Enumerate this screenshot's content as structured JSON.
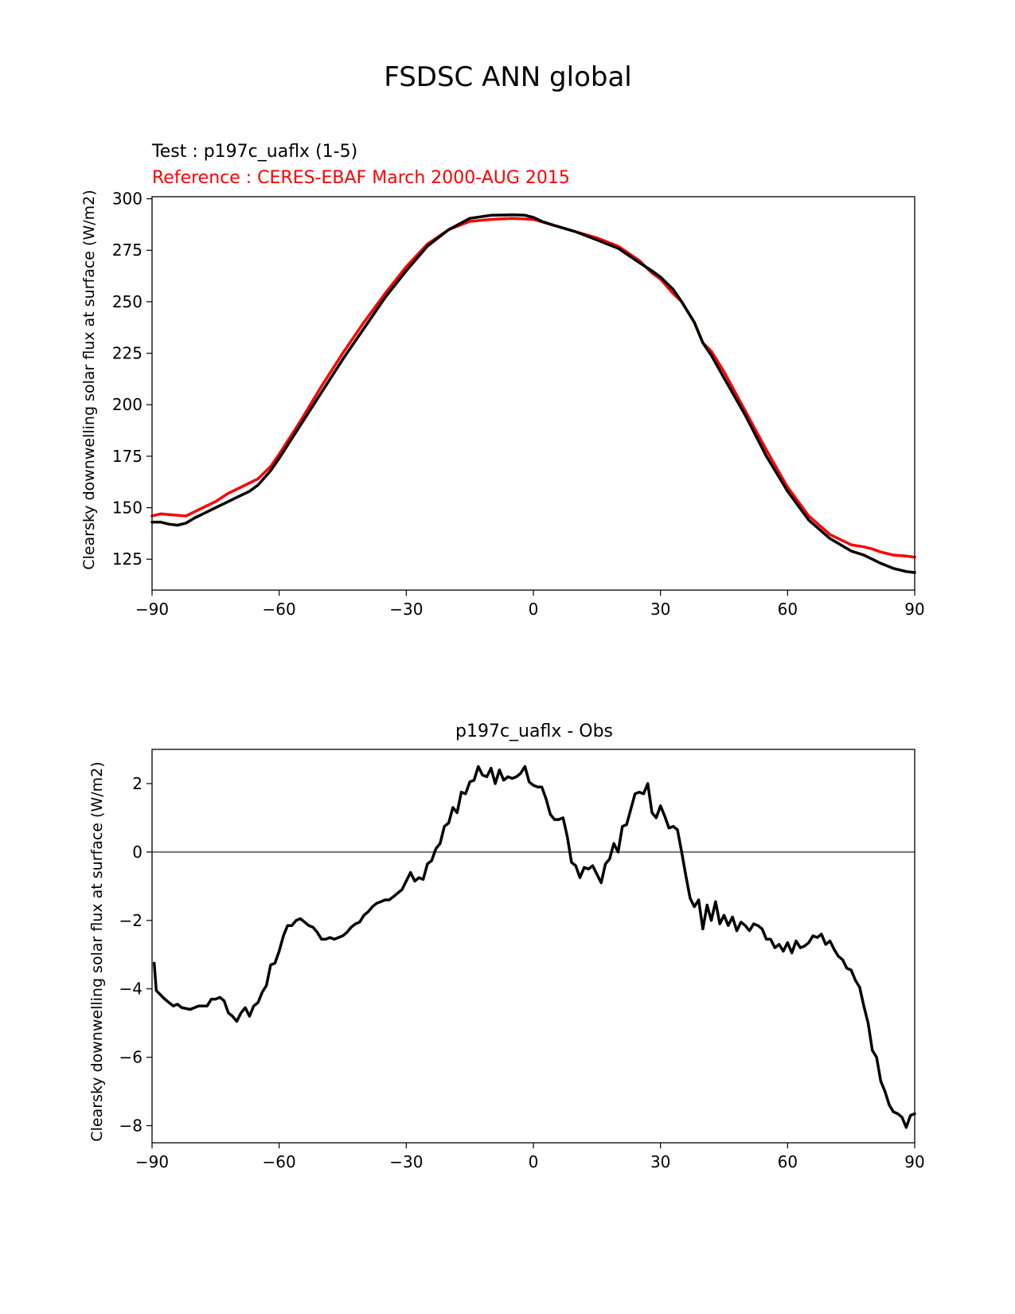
{
  "figure": {
    "title": "FSDSC ANN global"
  },
  "chart_data": [
    {
      "type": "line",
      "test_label": "Test : p197c_uaflx (1-5)",
      "reference_label": "Reference : CERES-EBAF March 2000-AUG 2015",
      "ylabel": "Clearsky downwelling solar flux at surface (W/m2)",
      "xlabel": "",
      "xlim": [
        -90,
        90
      ],
      "ylim": [
        110,
        301
      ],
      "xticks": [
        -90,
        -60,
        -30,
        0,
        30,
        60,
        90
      ],
      "yticks": [
        125,
        150,
        175,
        200,
        225,
        250,
        275,
        300
      ],
      "xtick_labels": [
        "−90",
        "−60",
        "−30",
        "0",
        "30",
        "60",
        "90"
      ],
      "ytick_labels": [
        "125",
        "150",
        "175",
        "200",
        "225",
        "250",
        "275",
        "300"
      ],
      "grid": false,
      "series": [
        {
          "role": "reference",
          "color": "#ff0000",
          "x": [
            -90,
            -88,
            -85,
            -82,
            -80,
            -78,
            -75,
            -72,
            -70,
            -67,
            -65,
            -62,
            -60,
            -55,
            -50,
            -45,
            -40,
            -35,
            -30,
            -25,
            -20,
            -15,
            -10,
            -5,
            0,
            5,
            10,
            15,
            20,
            25,
            28,
            30,
            33,
            35,
            38,
            40,
            42,
            45,
            50,
            55,
            60,
            65,
            70,
            75,
            78,
            80,
            82,
            85,
            88,
            90
          ],
          "y": [
            146,
            147,
            146.5,
            146,
            148,
            150,
            153,
            157,
            159,
            162,
            164,
            170,
            176,
            192,
            209,
            225,
            240,
            254,
            267,
            278,
            285,
            289,
            290,
            290.5,
            290,
            287,
            284,
            281,
            277,
            270,
            264,
            261,
            254,
            250,
            240,
            230,
            226,
            216,
            197,
            178,
            160,
            146,
            137,
            132,
            131,
            130,
            128.5,
            127,
            126.5,
            126
          ]
        },
        {
          "role": "test",
          "color": "#000000",
          "x": [
            -90,
            -88,
            -86,
            -84,
            -82,
            -80,
            -78,
            -75,
            -72,
            -70,
            -67,
            -65,
            -62,
            -60,
            -55,
            -50,
            -45,
            -40,
            -35,
            -30,
            -25,
            -20,
            -15,
            -10,
            -5,
            -2,
            0,
            2,
            5,
            10,
            15,
            20,
            25,
            28,
            30,
            33,
            35,
            38,
            40,
            42,
            45,
            50,
            55,
            60,
            65,
            70,
            75,
            78,
            80,
            82,
            85,
            88,
            90
          ],
          "y": [
            143,
            143,
            142,
            141.5,
            142.5,
            145,
            147,
            150,
            153,
            155,
            158,
            161,
            168,
            174,
            190,
            206,
            222,
            237,
            252,
            265,
            277,
            285,
            290.5,
            292,
            292.2,
            292,
            291,
            289,
            287,
            284,
            280,
            276,
            269,
            265,
            262,
            256,
            250,
            240,
            230,
            224,
            213,
            195,
            175,
            158,
            144,
            135,
            129,
            127,
            125,
            123,
            120.5,
            119,
            118.5
          ]
        }
      ]
    },
    {
      "type": "line",
      "title": "p197c_uaflx - Obs",
      "ylabel": "Clearsky downwelling solar flux at surface (W/m2)",
      "xlabel": "",
      "xlim": [
        -90,
        90
      ],
      "ylim": [
        -8.5,
        3
      ],
      "xticks": [
        -90,
        -60,
        -30,
        0,
        30,
        60,
        90
      ],
      "yticks": [
        -8,
        -6,
        -4,
        -2,
        0,
        2
      ],
      "xtick_labels": [
        "−90",
        "−60",
        "−30",
        "0",
        "30",
        "60",
        "90"
      ],
      "ytick_labels": [
        "−8",
        "−6",
        "−4",
        "−2",
        "0",
        "2"
      ],
      "grid": false,
      "zero_line_color": "#808080",
      "series": [
        {
          "role": "difference",
          "color": "#000000",
          "x": [
            -89.5,
            -89,
            -87,
            -85,
            -84,
            -83,
            -81,
            -79,
            -77,
            -76,
            -75,
            -74,
            -73,
            -72,
            -71,
            -70,
            -69,
            -68,
            -67,
            -66,
            -65,
            -64,
            -63,
            -62,
            -61,
            -60,
            -59,
            -58,
            -57,
            -56,
            -55,
            -54,
            -53,
            -52,
            -51,
            -50,
            -49,
            -48,
            -47,
            -46,
            -45,
            -44,
            -43,
            -42,
            -41,
            -40,
            -39,
            -38,
            -37,
            -36,
            -35,
            -34,
            -33,
            -32,
            -31,
            -30,
            -29,
            -28,
            -27,
            -26,
            -25,
            -24,
            -23,
            -22,
            -21,
            -20,
            -19,
            -18,
            -17,
            -16,
            -15,
            -14,
            -13,
            -12,
            -11,
            -10,
            -9,
            -8,
            -7,
            -6,
            -5,
            -4,
            -3,
            -2,
            -1,
            0,
            1,
            2,
            3,
            4,
            5,
            6,
            7,
            8,
            9,
            10,
            11,
            12,
            13,
            14,
            15,
            16,
            17,
            18,
            19,
            20,
            21,
            22,
            23,
            24,
            25,
            26,
            27,
            28,
            29,
            30,
            31,
            32,
            33,
            34,
            35,
            36,
            37,
            38,
            39,
            40,
            41,
            42,
            43,
            44,
            45,
            46,
            47,
            48,
            49,
            50,
            51,
            52,
            53,
            54,
            55,
            56,
            57,
            58,
            59,
            60,
            61,
            62,
            63,
            64,
            65,
            66,
            67,
            68,
            69,
            70,
            71,
            72,
            73,
            74,
            75,
            76,
            77,
            78,
            79,
            80,
            81,
            82,
            83,
            84,
            85,
            86,
            87,
            88,
            89,
            90
          ],
          "y": [
            -3.25,
            -4.05,
            -4.3,
            -4.5,
            -4.45,
            -4.55,
            -4.6,
            -4.5,
            -4.5,
            -4.3,
            -4.3,
            -4.25,
            -4.35,
            -4.7,
            -4.8,
            -4.95,
            -4.7,
            -4.55,
            -4.8,
            -4.5,
            -4.4,
            -4.1,
            -3.9,
            -3.3,
            -3.25,
            -2.9,
            -2.45,
            -2.15,
            -2.15,
            -2.0,
            -1.95,
            -2.05,
            -2.15,
            -2.2,
            -2.35,
            -2.55,
            -2.55,
            -2.5,
            -2.55,
            -2.5,
            -2.45,
            -2.35,
            -2.2,
            -2.1,
            -2.05,
            -1.85,
            -1.75,
            -1.6,
            -1.5,
            -1.45,
            -1.4,
            -1.4,
            -1.3,
            -1.2,
            -1.1,
            -0.85,
            -0.6,
            -0.85,
            -0.75,
            -0.8,
            -0.35,
            -0.25,
            0.1,
            0.25,
            0.75,
            0.85,
            1.3,
            1.15,
            1.75,
            1.7,
            2.05,
            2.1,
            2.5,
            2.25,
            2.2,
            2.45,
            2.0,
            2.4,
            2.1,
            2.2,
            2.15,
            2.2,
            2.3,
            2.5,
            2.05,
            1.95,
            1.9,
            1.9,
            1.55,
            1.1,
            0.95,
            0.95,
            1.0,
            0.45,
            -0.3,
            -0.4,
            -0.75,
            -0.45,
            -0.5,
            -0.4,
            -0.65,
            -0.9,
            -0.35,
            -0.2,
            0.25,
            0.0,
            0.75,
            0.8,
            1.25,
            1.7,
            1.75,
            1.7,
            2.0,
            1.15,
            1.0,
            1.35,
            1.05,
            0.7,
            0.75,
            0.65,
            0.0,
            -0.7,
            -1.35,
            -1.6,
            -1.4,
            -2.25,
            -1.55,
            -2.0,
            -1.45,
            -2.1,
            -1.85,
            -2.15,
            -1.9,
            -2.3,
            -2.05,
            -2.15,
            -2.3,
            -2.1,
            -2.15,
            -2.25,
            -2.55,
            -2.55,
            -2.8,
            -2.7,
            -2.9,
            -2.65,
            -2.95,
            -2.6,
            -2.8,
            -2.75,
            -2.65,
            -2.45,
            -2.5,
            -2.4,
            -2.7,
            -2.6,
            -2.85,
            -3.05,
            -3.15,
            -3.4,
            -3.45,
            -3.75,
            -3.95,
            -4.5,
            -5.0,
            -5.8,
            -6.0,
            -6.7,
            -7.0,
            -7.4,
            -7.6,
            -7.65,
            -7.75,
            -8.05,
            -7.7,
            -7.65
          ]
        }
      ]
    }
  ]
}
